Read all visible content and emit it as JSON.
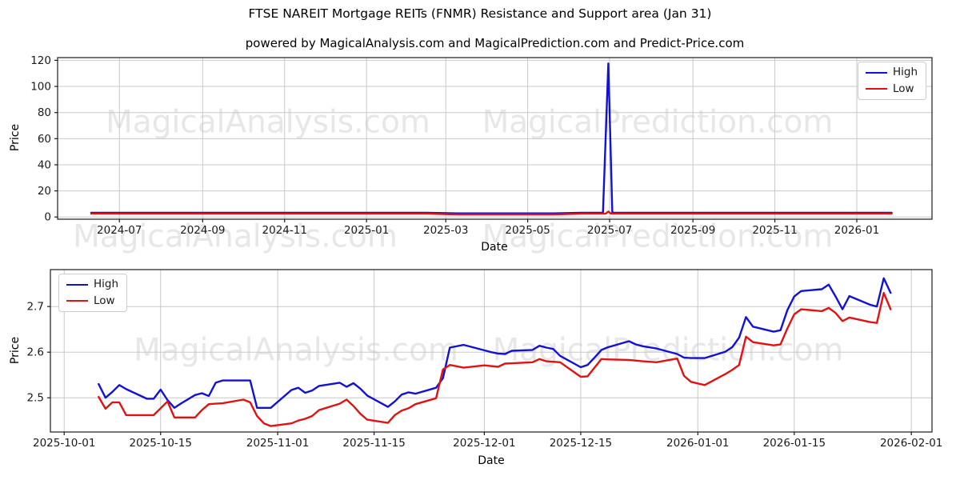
{
  "figure": {
    "title": "FTSE NAREIT Mortgage REITs (FNMR) Resistance and Support area (Jan 31)",
    "subtitle": "powered by MagicalAnalysis.com and MagicalPrediction.com and Predict-Price.com",
    "background": "#ffffff"
  },
  "colors": {
    "high": "#1212d6",
    "low": "#e01212",
    "grid": "#c8c8c8",
    "spine": "#1a1a1a",
    "tick_text": "#1a1a1a",
    "watermark": "#e7e7e7"
  },
  "watermarks": {
    "left_text": "MagicalAnalysis.com",
    "right_text": "MagicalPrediction.com"
  },
  "chart_data": [
    {
      "type": "line",
      "title": "",
      "xlabel": "Date",
      "ylabel": "Price",
      "grid": true,
      "legend_position": "upper right",
      "xlim": [
        "2024-05-16",
        "2026-02-26"
      ],
      "ylim": [
        -1.7,
        122.1
      ],
      "xticks": [
        "2024-07",
        "2024-09",
        "2024-11",
        "2025-01",
        "2025-03",
        "2025-05",
        "2025-07",
        "2025-09",
        "2025-11",
        "2026-01"
      ],
      "yticks": [
        0,
        20,
        40,
        60,
        80,
        100,
        120
      ],
      "ytick_labels": [
        "0",
        "20",
        "40",
        "60",
        "80",
        "100",
        "120"
      ],
      "series": [
        {
          "name": "High",
          "color": "#1212d6",
          "points": [
            [
              "2024-06-10",
              3.2
            ],
            [
              "2025-02-15",
              3.2
            ],
            [
              "2025-03-10",
              2.8
            ],
            [
              "2025-05-20",
              2.8
            ],
            [
              "2025-06-10",
              3.2
            ],
            [
              "2025-06-26",
              3.2
            ],
            [
              "2025-06-30",
              117.6
            ],
            [
              "2025-07-03",
              3.2
            ],
            [
              "2026-01-27",
              3.2
            ]
          ]
        },
        {
          "name": "Low",
          "color": "#e01212",
          "points": [
            [
              "2024-06-10",
              2.5
            ],
            [
              "2025-02-15",
              2.5
            ],
            [
              "2025-03-10",
              1.9
            ],
            [
              "2025-05-20",
              1.9
            ],
            [
              "2025-06-10",
              2.5
            ],
            [
              "2025-06-28",
              2.5
            ],
            [
              "2025-06-30",
              4.2
            ],
            [
              "2025-07-02",
              2.5
            ],
            [
              "2026-01-27",
              2.5
            ]
          ]
        }
      ]
    },
    {
      "type": "line",
      "title": "",
      "xlabel": "Date",
      "ylabel": "Price",
      "grid": true,
      "legend_position": "upper left",
      "xlim": [
        "2025-09-29",
        "2026-02-04"
      ],
      "ylim": [
        2.425,
        2.781
      ],
      "xticks": [
        "2025-10-01",
        "2025-10-15",
        "2025-11-01",
        "2025-11-15",
        "2025-12-01",
        "2025-12-15",
        "2026-01-01",
        "2026-01-15",
        "2026-02-01"
      ],
      "yticks": [
        2.5,
        2.6,
        2.7
      ],
      "ytick_labels": [
        "2.5",
        "2.6",
        "2.7"
      ],
      "series": [
        {
          "name": "High",
          "color": "#1212d6",
          "points": [
            [
              "2025-10-06",
              2.53
            ],
            [
              "2025-10-07",
              2.5
            ],
            [
              "2025-10-08",
              2.513
            ],
            [
              "2025-10-09",
              2.528
            ],
            [
              "2025-10-10",
              2.519
            ],
            [
              "2025-10-13",
              2.498
            ],
            [
              "2025-10-14",
              2.498
            ],
            [
              "2025-10-15",
              2.518
            ],
            [
              "2025-10-16",
              2.495
            ],
            [
              "2025-10-17",
              2.478
            ],
            [
              "2025-10-18",
              2.488
            ],
            [
              "2025-10-20",
              2.506
            ],
            [
              "2025-10-21",
              2.51
            ],
            [
              "2025-10-22",
              2.504
            ],
            [
              "2025-10-23",
              2.533
            ],
            [
              "2025-10-24",
              2.538
            ],
            [
              "2025-10-28",
              2.538
            ],
            [
              "2025-10-29",
              2.478
            ],
            [
              "2025-10-31",
              2.478
            ],
            [
              "2025-11-03",
              2.517
            ],
            [
              "2025-11-04",
              2.522
            ],
            [
              "2025-11-05",
              2.511
            ],
            [
              "2025-11-06",
              2.516
            ],
            [
              "2025-11-07",
              2.526
            ],
            [
              "2025-11-10",
              2.533
            ],
            [
              "2025-11-11",
              2.524
            ],
            [
              "2025-11-12",
              2.532
            ],
            [
              "2025-11-13",
              2.52
            ],
            [
              "2025-11-14",
              2.505
            ],
            [
              "2025-11-17",
              2.48
            ],
            [
              "2025-11-18",
              2.492
            ],
            [
              "2025-11-19",
              2.507
            ],
            [
              "2025-11-20",
              2.512
            ],
            [
              "2025-11-21",
              2.509
            ],
            [
              "2025-11-24",
              2.522
            ],
            [
              "2025-11-25",
              2.543
            ],
            [
              "2025-11-26",
              2.61
            ],
            [
              "2025-11-28",
              2.616
            ],
            [
              "2025-12-01",
              2.604
            ],
            [
              "2025-12-02",
              2.6
            ],
            [
              "2025-12-03",
              2.597
            ],
            [
              "2025-12-04",
              2.596
            ],
            [
              "2025-12-05",
              2.603
            ],
            [
              "2025-12-08",
              2.605
            ],
            [
              "2025-12-09",
              2.614
            ],
            [
              "2025-12-10",
              2.61
            ],
            [
              "2025-12-11",
              2.607
            ],
            [
              "2025-12-12",
              2.592
            ],
            [
              "2025-12-15",
              2.567
            ],
            [
              "2025-12-16",
              2.572
            ],
            [
              "2025-12-17",
              2.588
            ],
            [
              "2025-12-18",
              2.605
            ],
            [
              "2025-12-19",
              2.611
            ],
            [
              "2025-12-22",
              2.624
            ],
            [
              "2025-12-23",
              2.617
            ],
            [
              "2025-12-24",
              2.613
            ],
            [
              "2025-12-26",
              2.608
            ],
            [
              "2025-12-29",
              2.596
            ],
            [
              "2025-12-30",
              2.588
            ],
            [
              "2025-12-31",
              2.587
            ],
            [
              "2026-01-02",
              2.587
            ],
            [
              "2026-01-05",
              2.601
            ],
            [
              "2026-01-06",
              2.611
            ],
            [
              "2026-01-07",
              2.632
            ],
            [
              "2026-01-08",
              2.677
            ],
            [
              "2026-01-09",
              2.656
            ],
            [
              "2026-01-12",
              2.645
            ],
            [
              "2026-01-13",
              2.648
            ],
            [
              "2026-01-14",
              2.692
            ],
            [
              "2026-01-15",
              2.722
            ],
            [
              "2026-01-16",
              2.734
            ],
            [
              "2026-01-19",
              2.738
            ],
            [
              "2026-01-20",
              2.748
            ],
            [
              "2026-01-21",
              2.722
            ],
            [
              "2026-01-22",
              2.694
            ],
            [
              "2026-01-23",
              2.723
            ],
            [
              "2026-01-26",
              2.704
            ],
            [
              "2026-01-27",
              2.7
            ],
            [
              "2026-01-28",
              2.762
            ],
            [
              "2026-01-29",
              2.73
            ]
          ]
        },
        {
          "name": "Low",
          "color": "#e01212",
          "points": [
            [
              "2025-10-06",
              2.502
            ],
            [
              "2025-10-07",
              2.476
            ],
            [
              "2025-10-08",
              2.49
            ],
            [
              "2025-10-09",
              2.49
            ],
            [
              "2025-10-10",
              2.462
            ],
            [
              "2025-10-14",
              2.462
            ],
            [
              "2025-10-15",
              2.477
            ],
            [
              "2025-10-16",
              2.492
            ],
            [
              "2025-10-17",
              2.457
            ],
            [
              "2025-10-20",
              2.457
            ],
            [
              "2025-10-21",
              2.473
            ],
            [
              "2025-10-22",
              2.486
            ],
            [
              "2025-10-23",
              2.487
            ],
            [
              "2025-10-24",
              2.488
            ],
            [
              "2025-10-27",
              2.496
            ],
            [
              "2025-10-28",
              2.49
            ],
            [
              "2025-10-29",
              2.46
            ],
            [
              "2025-10-30",
              2.444
            ],
            [
              "2025-10-31",
              2.438
            ],
            [
              "2025-11-03",
              2.444
            ],
            [
              "2025-11-04",
              2.45
            ],
            [
              "2025-11-05",
              2.454
            ],
            [
              "2025-11-06",
              2.46
            ],
            [
              "2025-11-07",
              2.473
            ],
            [
              "2025-11-10",
              2.487
            ],
            [
              "2025-11-11",
              2.496
            ],
            [
              "2025-11-12",
              2.482
            ],
            [
              "2025-11-13",
              2.465
            ],
            [
              "2025-11-14",
              2.452
            ],
            [
              "2025-11-17",
              2.445
            ],
            [
              "2025-11-18",
              2.462
            ],
            [
              "2025-11-19",
              2.472
            ],
            [
              "2025-11-20",
              2.477
            ],
            [
              "2025-11-21",
              2.486
            ],
            [
              "2025-11-24",
              2.499
            ],
            [
              "2025-11-25",
              2.562
            ],
            [
              "2025-11-26",
              2.572
            ],
            [
              "2025-11-28",
              2.566
            ],
            [
              "2025-12-01",
              2.571
            ],
            [
              "2025-12-03",
              2.568
            ],
            [
              "2025-12-04",
              2.575
            ],
            [
              "2025-12-08",
              2.578
            ],
            [
              "2025-12-09",
              2.585
            ],
            [
              "2025-12-10",
              2.58
            ],
            [
              "2025-12-12",
              2.578
            ],
            [
              "2025-12-15",
              2.546
            ],
            [
              "2025-12-16",
              2.547
            ],
            [
              "2025-12-18",
              2.585
            ],
            [
              "2025-12-19",
              2.584
            ],
            [
              "2025-12-22",
              2.583
            ],
            [
              "2025-12-24",
              2.58
            ],
            [
              "2025-12-26",
              2.578
            ],
            [
              "2025-12-29",
              2.586
            ],
            [
              "2025-12-30",
              2.548
            ],
            [
              "2025-12-31",
              2.535
            ],
            [
              "2026-01-02",
              2.528
            ],
            [
              "2026-01-05",
              2.552
            ],
            [
              "2026-01-06",
              2.561
            ],
            [
              "2026-01-07",
              2.572
            ],
            [
              "2026-01-08",
              2.634
            ],
            [
              "2026-01-09",
              2.622
            ],
            [
              "2026-01-12",
              2.615
            ],
            [
              "2026-01-13",
              2.617
            ],
            [
              "2026-01-14",
              2.652
            ],
            [
              "2026-01-15",
              2.683
            ],
            [
              "2026-01-16",
              2.694
            ],
            [
              "2026-01-19",
              2.69
            ],
            [
              "2026-01-20",
              2.697
            ],
            [
              "2026-01-21",
              2.686
            ],
            [
              "2026-01-22",
              2.668
            ],
            [
              "2026-01-23",
              2.676
            ],
            [
              "2026-01-26",
              2.666
            ],
            [
              "2026-01-27",
              2.664
            ],
            [
              "2026-01-28",
              2.73
            ],
            [
              "2026-01-29",
              2.694
            ]
          ]
        }
      ]
    }
  ]
}
